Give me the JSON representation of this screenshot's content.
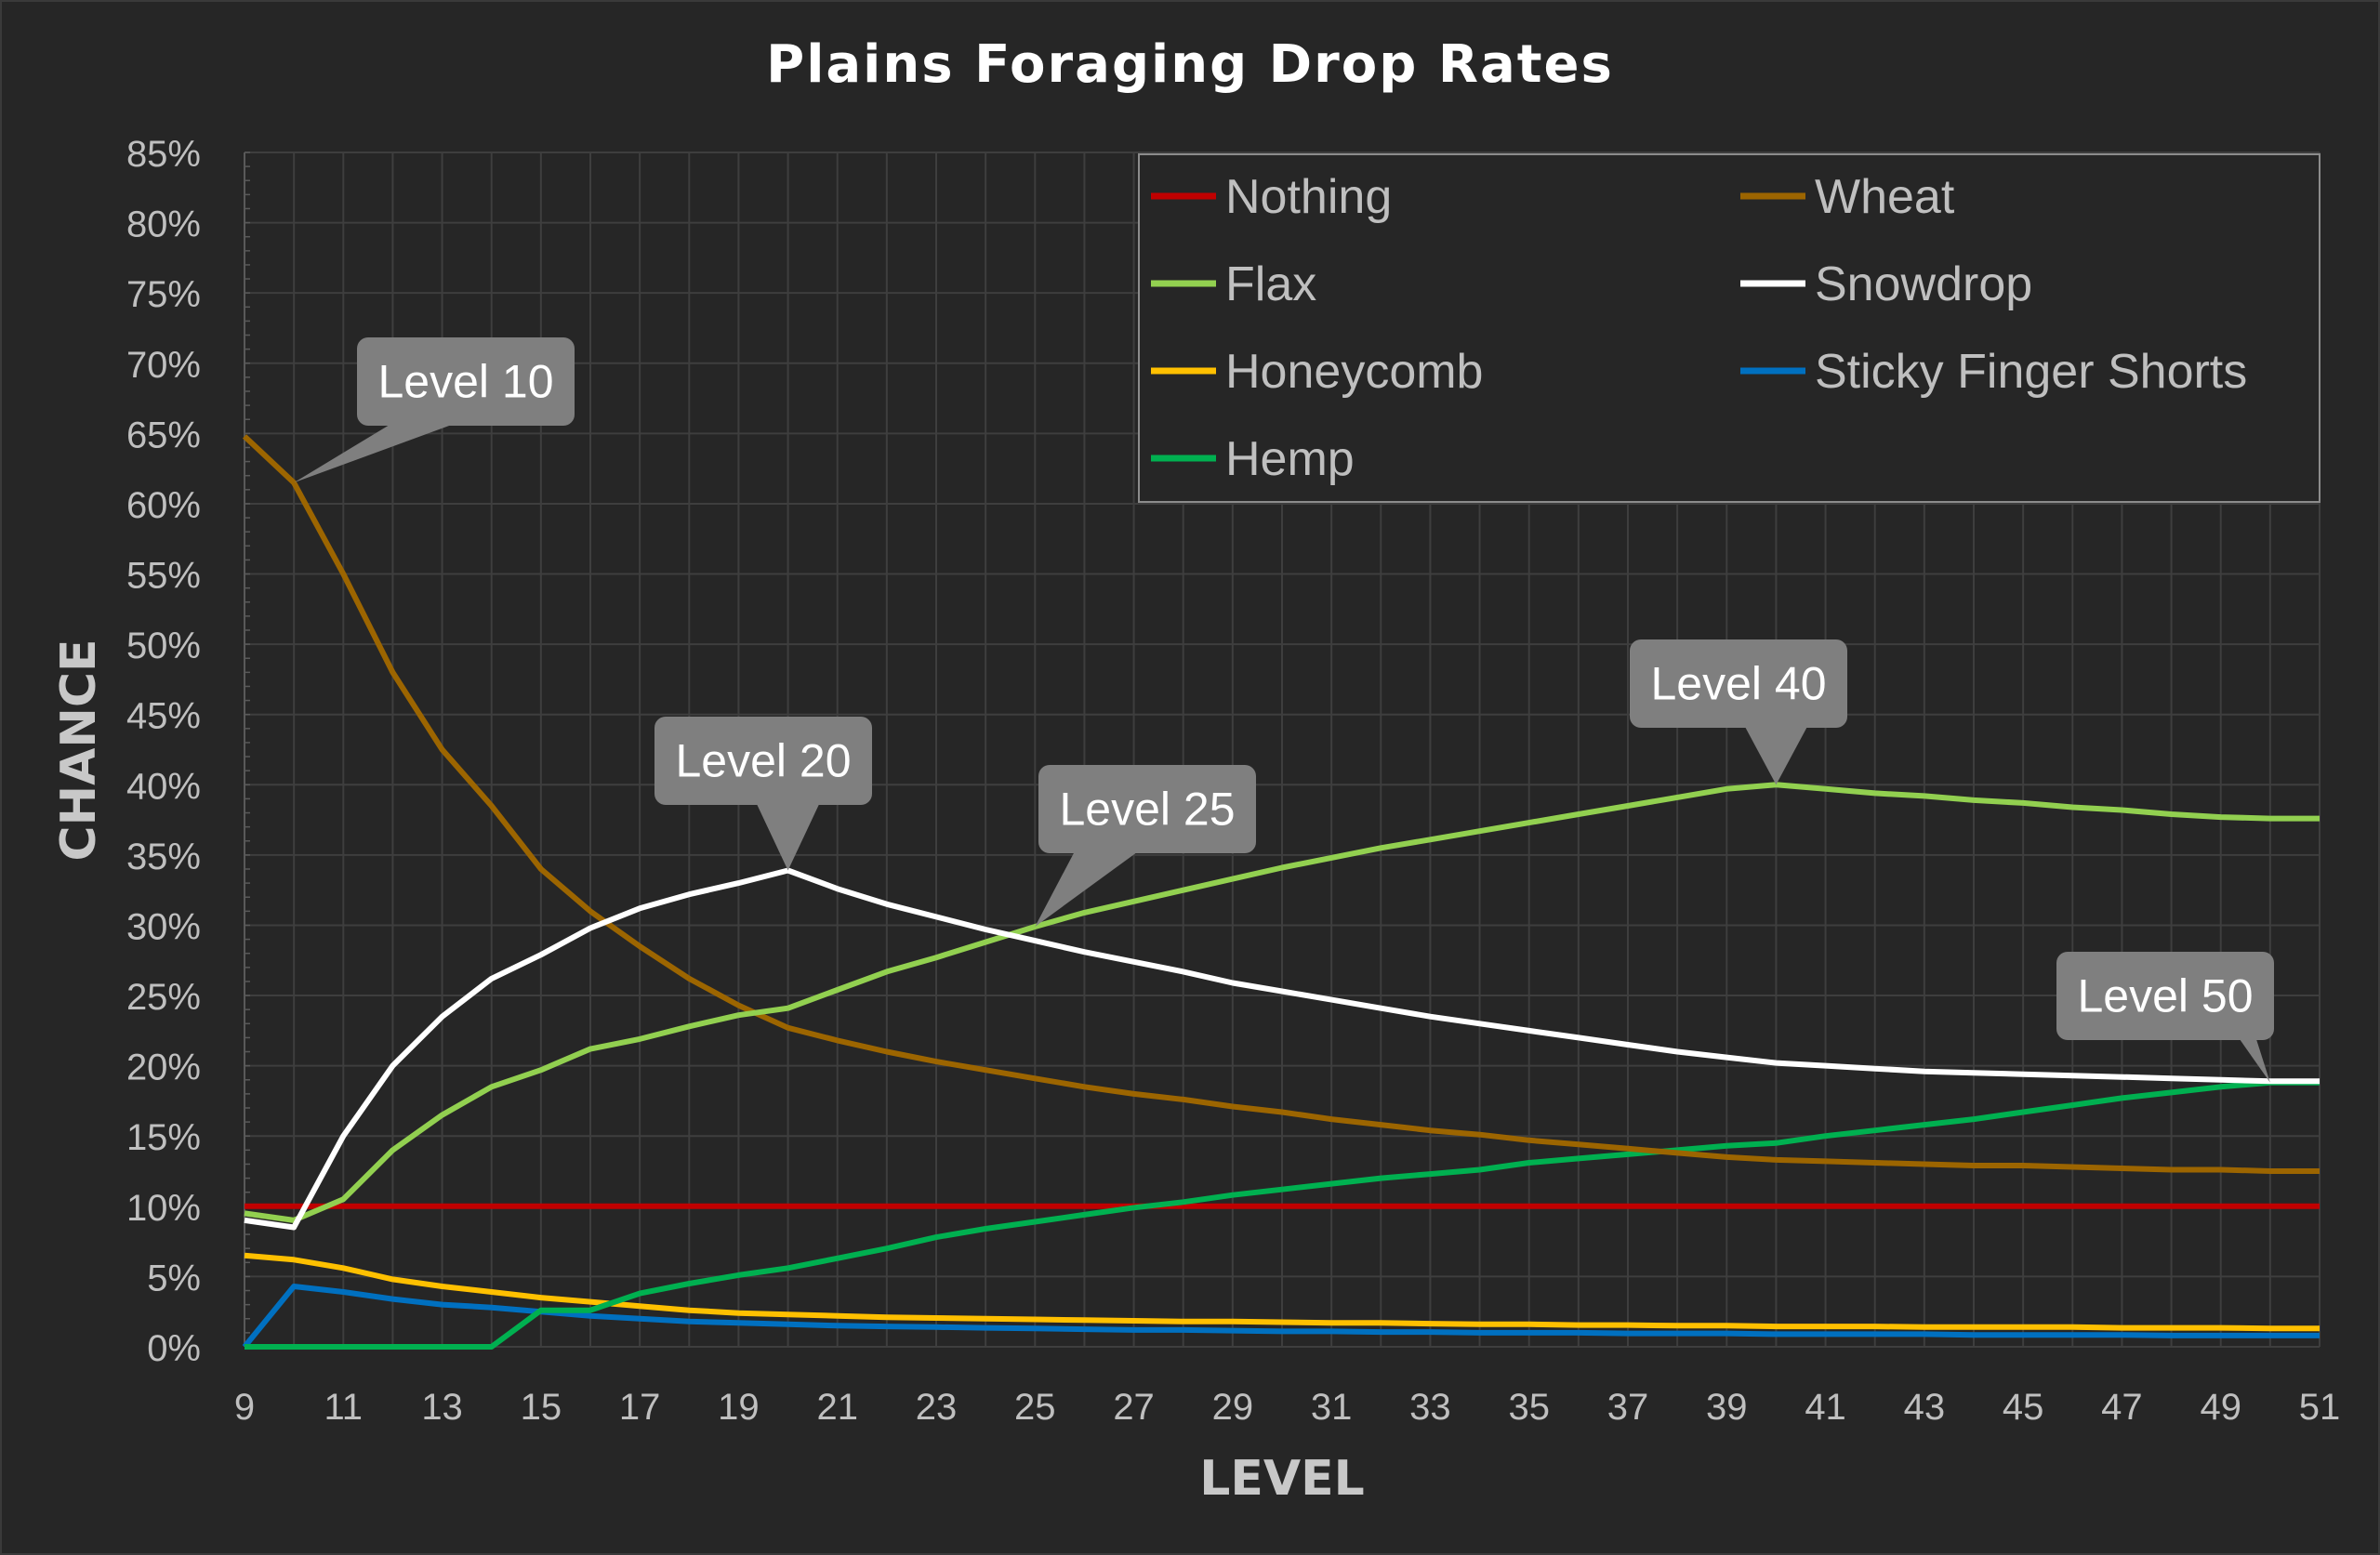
{
  "chart_data": {
    "type": "line",
    "title": "Plains Foraging Drop Rates",
    "xlabel": "LEVEL",
    "ylabel": "CHANCE",
    "xlim": [
      9,
      51
    ],
    "ylim": [
      0,
      85
    ],
    "x_tick_labels": [
      "9",
      "11",
      "13",
      "15",
      "17",
      "19",
      "21",
      "23",
      "25",
      "27",
      "29",
      "31",
      "33",
      "35",
      "37",
      "39",
      "41",
      "43",
      "45",
      "47",
      "49",
      "51"
    ],
    "y_tick_labels": [
      "0%",
      "5%",
      "10%",
      "15%",
      "20%",
      "25%",
      "30%",
      "35%",
      "40%",
      "45%",
      "50%",
      "55%",
      "60%",
      "65%",
      "70%",
      "75%",
      "80%",
      "85%"
    ],
    "grid": true,
    "legend_position": "top-right",
    "x": [
      9,
      10,
      11,
      12,
      13,
      14,
      15,
      16,
      17,
      18,
      19,
      20,
      21,
      22,
      23,
      24,
      25,
      26,
      27,
      28,
      29,
      30,
      31,
      32,
      33,
      34,
      35,
      36,
      37,
      38,
      39,
      40,
      41,
      42,
      43,
      44,
      45,
      46,
      47,
      48,
      49,
      50,
      51
    ],
    "series": [
      {
        "name": "Nothing",
        "color": "#c00000",
        "values": [
          10,
          10,
          10,
          10,
          10,
          10,
          10,
          10,
          10,
          10,
          10,
          10,
          10,
          10,
          10,
          10,
          10,
          10,
          10,
          10,
          10,
          10,
          10,
          10,
          10,
          10,
          10,
          10,
          10,
          10,
          10,
          10,
          10,
          10,
          10,
          10,
          10,
          10,
          10,
          10,
          10,
          10,
          10
        ]
      },
      {
        "name": "Wheat",
        "color": "#9c6500",
        "values": [
          64.8,
          61.5,
          55,
          48,
          42.5,
          38.5,
          34,
          31,
          28.5,
          26.2,
          24.3,
          22.7,
          21.8,
          21,
          20.3,
          19.7,
          19.1,
          18.5,
          18,
          17.6,
          17.1,
          16.7,
          16.2,
          15.8,
          15.4,
          15.1,
          14.7,
          14.4,
          14.1,
          13.8,
          13.5,
          13.3,
          13.2,
          13.1,
          13,
          12.9,
          12.9,
          12.8,
          12.7,
          12.6,
          12.6,
          12.5,
          12.5
        ]
      },
      {
        "name": "Flax",
        "color": "#92d050",
        "values": [
          9.5,
          9,
          10.5,
          14,
          16.5,
          18.5,
          19.7,
          21.2,
          21.9,
          22.8,
          23.6,
          24.1,
          25.4,
          26.7,
          27.7,
          28.8,
          29.9,
          30.9,
          31.7,
          32.5,
          33.3,
          34.1,
          34.8,
          35.5,
          36.1,
          36.7,
          37.3,
          37.9,
          38.5,
          39.1,
          39.7,
          40,
          39.7,
          39.4,
          39.2,
          38.9,
          38.7,
          38.4,
          38.2,
          37.9,
          37.7,
          37.6,
          37.6
        ]
      },
      {
        "name": "Snowdrop",
        "color": "#ffffff",
        "values": [
          9,
          8.5,
          15,
          20,
          23.5,
          26.2,
          27.9,
          29.8,
          31.2,
          32.2,
          33,
          33.9,
          32.6,
          31.5,
          30.6,
          29.7,
          28.9,
          28.1,
          27.4,
          26.7,
          25.9,
          25.3,
          24.7,
          24.1,
          23.5,
          23,
          22.5,
          22,
          21.5,
          21,
          20.6,
          20.2,
          20,
          19.8,
          19.6,
          19.5,
          19.4,
          19.3,
          19.2,
          19.1,
          19,
          18.9,
          18.9
        ]
      },
      {
        "name": "Honeycomb",
        "color": "#ffc000",
        "values": [
          6.5,
          6.2,
          5.6,
          4.8,
          4.3,
          3.9,
          3.5,
          3.2,
          2.9,
          2.6,
          2.4,
          2.3,
          2.2,
          2.1,
          2.05,
          2,
          1.95,
          1.9,
          1.85,
          1.8,
          1.8,
          1.75,
          1.7,
          1.7,
          1.65,
          1.6,
          1.6,
          1.55,
          1.55,
          1.5,
          1.5,
          1.45,
          1.45,
          1.45,
          1.4,
          1.4,
          1.4,
          1.4,
          1.35,
          1.35,
          1.35,
          1.3,
          1.3
        ]
      },
      {
        "name": "Sticky Finger Shorts",
        "color": "#0070c0",
        "values": [
          0,
          4.3,
          3.9,
          3.4,
          3,
          2.8,
          2.5,
          2.2,
          2,
          1.8,
          1.7,
          1.6,
          1.5,
          1.45,
          1.4,
          1.35,
          1.3,
          1.25,
          1.2,
          1.2,
          1.15,
          1.1,
          1.1,
          1.05,
          1.05,
          1,
          1,
          1,
          0.95,
          0.95,
          0.95,
          0.9,
          0.9,
          0.9,
          0.9,
          0.85,
          0.85,
          0.85,
          0.85,
          0.8,
          0.8,
          0.8,
          0.8
        ]
      },
      {
        "name": "Hemp",
        "color": "#00b050",
        "values": [
          0,
          0,
          0,
          0,
          0,
          0,
          2.6,
          2.6,
          3.8,
          4.5,
          5.1,
          5.6,
          6.3,
          7,
          7.8,
          8.4,
          8.9,
          9.4,
          9.9,
          10.3,
          10.8,
          11.2,
          11.6,
          12,
          12.3,
          12.6,
          13.1,
          13.4,
          13.7,
          14,
          14.3,
          14.5,
          15,
          15.4,
          15.8,
          16.2,
          16.7,
          17.2,
          17.7,
          18.1,
          18.5,
          18.8,
          18.8
        ]
      }
    ],
    "annotations": [
      {
        "text": "Level 10",
        "series": "Wheat",
        "x": 10
      },
      {
        "text": "Level 20",
        "series": "Snowdrop",
        "x": 20
      },
      {
        "text": "Level 25",
        "series": "Flax",
        "x": 25
      },
      {
        "text": "Level 40",
        "series": "Flax",
        "x": 40
      },
      {
        "text": "Level 50",
        "series": "Hemp",
        "x": 50
      }
    ]
  }
}
